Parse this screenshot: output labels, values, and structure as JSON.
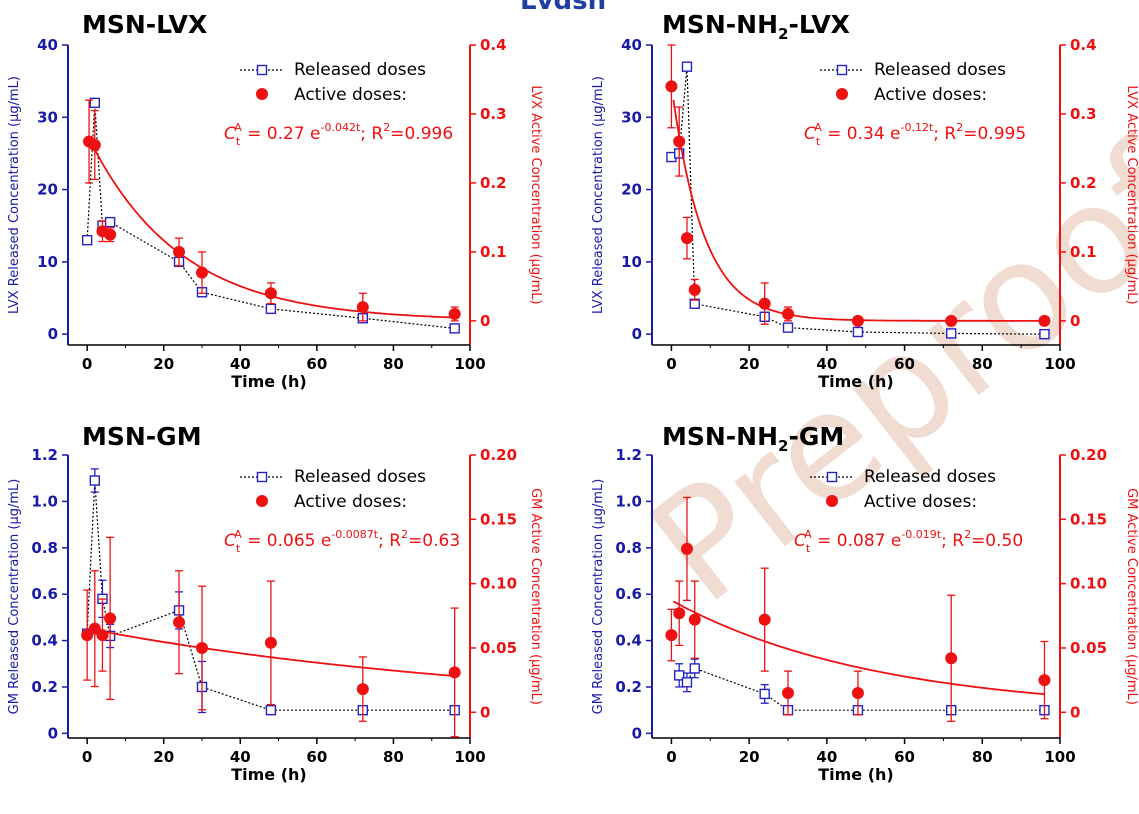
{
  "header_partial": "Lvdsh",
  "watermark": "Preproof",
  "colors": {
    "released": "#2323c8",
    "active": "#ee1111",
    "axis_left": "#1a1aa8",
    "axis_right": "#ee1111",
    "dark": "#000000"
  },
  "chart_data": [
    {
      "type": "scatter",
      "title_main": "MSN-LVX",
      "title_sub": "",
      "title_tail": "",
      "xlabel": "Time (h)",
      "ylabel": "LVX Released Concentration (µg/mL)",
      "y2label": "LVX Active Concentration (µg/mL)",
      "xlim": [
        -5,
        100
      ],
      "xticks": [
        "0",
        "20",
        "40",
        "60",
        "80",
        "100"
      ],
      "ylim": [
        -1.5,
        40
      ],
      "yticks": [
        "0",
        "10",
        "20",
        "30",
        "40"
      ],
      "y2lim": [
        -0.035,
        0.4
      ],
      "y2ticks": [
        "0",
        "0.1",
        "0.2",
        "0.3",
        "0.4"
      ],
      "legend": [
        "Released doses",
        "Active doses:"
      ],
      "equation": {
        "pre": " = 0.27 e",
        "exp": "-0.042t",
        "mid": "; R",
        "r2": "2",
        "post": "=0.996"
      },
      "series": [
        {
          "name": "Released doses",
          "x": [
            0,
            2,
            4,
            6,
            24,
            30,
            48,
            72,
            96
          ],
          "y": [
            13,
            32,
            15,
            15.5,
            10,
            5.8,
            3.5,
            2.2,
            0.8
          ]
        },
        {
          "name": "Active doses",
          "x": [
            0.5,
            2,
            4,
            6,
            24,
            30,
            48,
            72,
            96
          ],
          "y": [
            0.26,
            0.255,
            0.13,
            0.125,
            0.1,
            0.07,
            0.04,
            0.02,
            0.01
          ],
          "err": [
            0.06,
            0.05,
            0.015,
            0.01,
            0.02,
            0.03,
            0.015,
            0.02,
            0.01
          ]
        },
        {
          "name": "fit",
          "a": 0.27,
          "k": 0.042
        }
      ]
    },
    {
      "type": "scatter",
      "title_main": "MSN-NH",
      "title_sub": "2",
      "title_tail": "-LVX",
      "xlabel": "Time (h)",
      "ylabel": "LVX Released Concentration (µg/mL)",
      "y2label": "LVX Active Concentration (µg/mL)",
      "xlim": [
        -5,
        100
      ],
      "xticks": [
        "0",
        "20",
        "40",
        "60",
        "80",
        "100"
      ],
      "ylim": [
        -1.5,
        40
      ],
      "yticks": [
        "0",
        "10",
        "20",
        "30",
        "40"
      ],
      "y2lim": [
        -0.035,
        0.4
      ],
      "y2ticks": [
        "0",
        "0.1",
        "0.2",
        "0.3",
        "0.4"
      ],
      "legend": [
        "Released doses",
        "Active doses:"
      ],
      "equation": {
        "pre": " = 0.34 e",
        "exp": "-0.12t",
        "mid": "; R",
        "r2": "2",
        "post": "=0.995"
      },
      "series": [
        {
          "name": "Released doses",
          "x": [
            0,
            2,
            4,
            6,
            24,
            30,
            48,
            72,
            96
          ],
          "y": [
            24.5,
            25,
            37,
            4.2,
            2.4,
            0.9,
            0.3,
            0.1,
            0
          ]
        },
        {
          "name": "Active doses",
          "x": [
            0,
            2,
            4,
            6,
            24,
            30,
            48,
            72,
            96
          ],
          "y": [
            0.34,
            0.26,
            0.12,
            0.045,
            0.025,
            0.01,
            0,
            0,
            0
          ],
          "err": [
            0.06,
            0.05,
            0.03,
            0.015,
            0.03,
            0.01,
            0,
            0,
            0
          ]
        },
        {
          "name": "fit",
          "a": 0.34,
          "k": 0.12
        }
      ]
    },
    {
      "type": "scatter",
      "title_main": "MSN-GM",
      "title_sub": "",
      "title_tail": "",
      "xlabel": "Time (h)",
      "ylabel": "GM Released Concentration (µg/mL)",
      "y2label": "GM Active Concentration (µg/mL)",
      "xlim": [
        -5,
        100
      ],
      "xticks": [
        "0",
        "20",
        "40",
        "60",
        "80",
        "100"
      ],
      "ylim": [
        -0.02,
        1.2
      ],
      "yticks": [
        "0",
        "0.2",
        "0.4",
        "0.6",
        "0.8",
        "1.0",
        "1.2"
      ],
      "y2lim": [
        -0.02,
        0.2
      ],
      "y2ticks": [
        "0",
        "0.05",
        "0.10",
        "0.15",
        "0.20"
      ],
      "legend": [
        "Released doses",
        "Active doses:"
      ],
      "equation": {
        "pre": " = 0.065 e",
        "exp": "-0.0087t",
        "mid": "; R",
        "r2": "2",
        "post": "=0.63"
      },
      "series": [
        {
          "name": "Released doses",
          "x": [
            0,
            2,
            4,
            6,
            24,
            30,
            48,
            72,
            96
          ],
          "y": [
            0.43,
            1.09,
            0.58,
            0.42,
            0.53,
            0.2,
            0.1,
            0.1,
            0.1
          ],
          "err": [
            0,
            0.05,
            0.08,
            0.05,
            0.08,
            0.11,
            0,
            0,
            0
          ]
        },
        {
          "name": "Active doses",
          "x": [
            0,
            2,
            4,
            6,
            24,
            30,
            48,
            72,
            96
          ],
          "y": [
            0.06,
            0.065,
            0.06,
            0.073,
            0.07,
            0.05,
            0.054,
            0.018,
            0.031
          ],
          "err": [
            0.035,
            0.045,
            0.028,
            0.063,
            0.04,
            0.048,
            0.048,
            0.025,
            0.05
          ]
        },
        {
          "name": "fit",
          "a": 0.065,
          "k": 0.0087
        }
      ]
    },
    {
      "type": "scatter",
      "title_main": "MSN-NH",
      "title_sub": "2",
      "title_tail": "-GM",
      "xlabel": "Time (h)",
      "ylabel": "GM Released Concentration (µg/mL)",
      "y2label": "GM Active Concentration (µg/mL)",
      "xlim": [
        -5,
        100
      ],
      "xticks": [
        "0",
        "20",
        "40",
        "60",
        "80",
        "100"
      ],
      "ylim": [
        -0.02,
        1.2
      ],
      "yticks": [
        "0",
        "0.2",
        "0.4",
        "0.6",
        "0.8",
        "1.0",
        "1.2"
      ],
      "y2lim": [
        -0.02,
        0.2
      ],
      "y2ticks": [
        "0",
        "0.05",
        "0.10",
        "0.15",
        "0.20"
      ],
      "legend": [
        "Released doses",
        "Active doses:"
      ],
      "equation": {
        "pre": " =  0.087 e",
        "exp": "-0.019t",
        "mid": "; R",
        "r2": "2",
        "post": "=0.50"
      },
      "series": [
        {
          "name": "Released doses",
          "x": [
            2,
            4,
            6,
            24,
            30,
            48,
            72,
            96
          ],
          "y": [
            0.25,
            0.22,
            0.28,
            0.17,
            0.1,
            0.1,
            0.1,
            0.1
          ],
          "err": [
            0.05,
            0.04,
            0.04,
            0.04,
            0,
            0,
            0,
            0
          ]
        },
        {
          "name": "Active doses",
          "x": [
            0,
            2,
            4,
            6,
            24,
            30,
            48,
            72,
            96
          ],
          "y": [
            0.06,
            0.077,
            0.127,
            0.072,
            0.072,
            0.015,
            0.015,
            0.042,
            0.025
          ],
          "err": [
            0.02,
            0.025,
            0.04,
            0.03,
            0.04,
            0.017,
            0.017,
            0.049,
            0.03
          ]
        },
        {
          "name": "fit",
          "a": 0.087,
          "k": 0.019
        }
      ]
    }
  ]
}
